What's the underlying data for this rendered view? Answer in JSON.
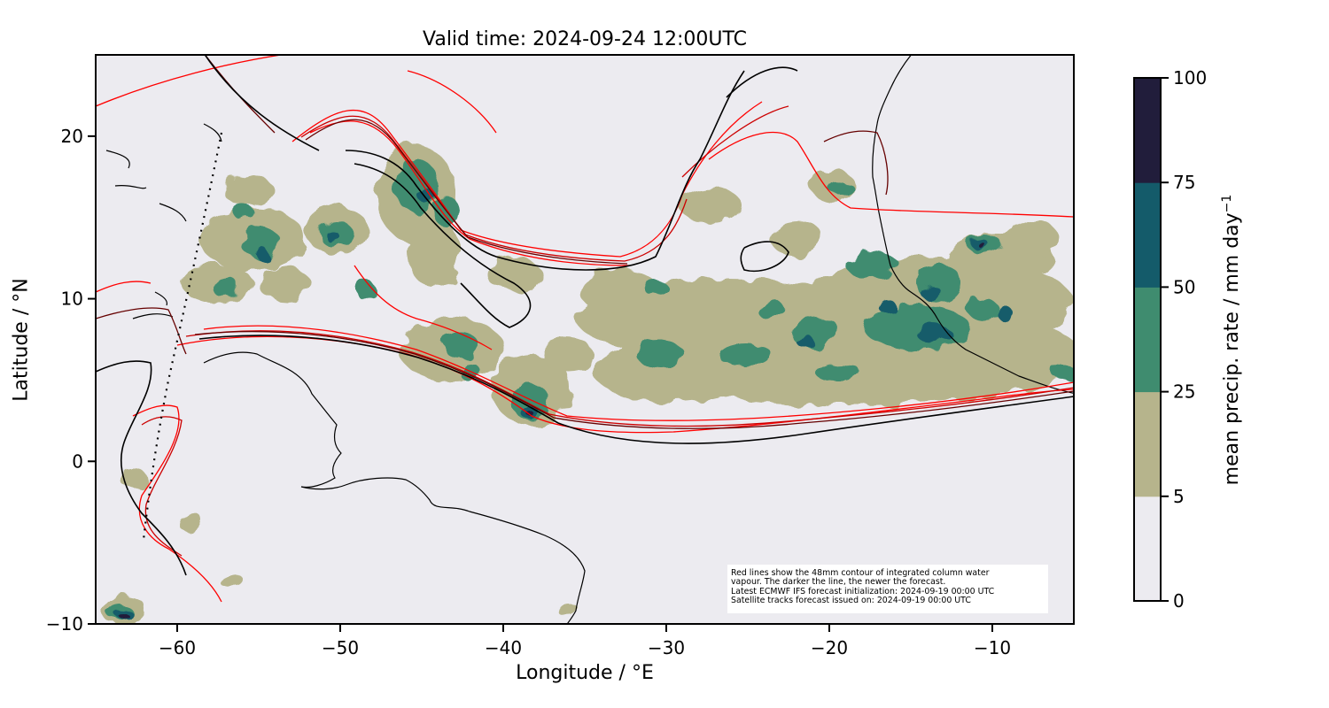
{
  "map": {
    "title": "Valid time: 2024-09-24 12:00UTC",
    "xlabel": "Longitude / °E",
    "ylabel": "Latitude / °N",
    "x_ticks": [
      "−60",
      "−50",
      "−40",
      "−30",
      "−20",
      "−10"
    ],
    "x_tick_values": [
      -60,
      -50,
      -40,
      -30,
      -20,
      -10
    ],
    "y_ticks": [
      "20",
      "10",
      "0",
      "−10"
    ],
    "y_tick_values": [
      20,
      10,
      0,
      -10
    ],
    "lon_range": [
      -65,
      -5
    ],
    "lat_range": [
      -10,
      25
    ],
    "background_color": "#ecebf0",
    "coastline_color": "#000000",
    "annotation_lines": [
      "Red lines show the 48mm contour of integrated column water",
      "vapour. The darker the line, the newer the forecast.",
      "Latest ECMWF IFS forecast initialization: 2024-09-19 00:00 UTC",
      "Satellite tracks forecast issued on: 2024-09-19 00:00 UTC"
    ],
    "contour_colors": [
      "#ff0000",
      "#cc0000",
      "#660000",
      "#000000"
    ]
  },
  "colorbar": {
    "label": "mean precip. rate / mm day",
    "label_exponent": "−1",
    "tick_labels": [
      "0",
      "5",
      "25",
      "50",
      "75",
      "100"
    ],
    "levels": [
      0,
      5,
      25,
      50,
      75,
      100
    ],
    "colors": [
      "#ecebf0",
      "#b6b48c",
      "#3f8c6f",
      "#145b6a",
      "#211d3b"
    ]
  }
}
